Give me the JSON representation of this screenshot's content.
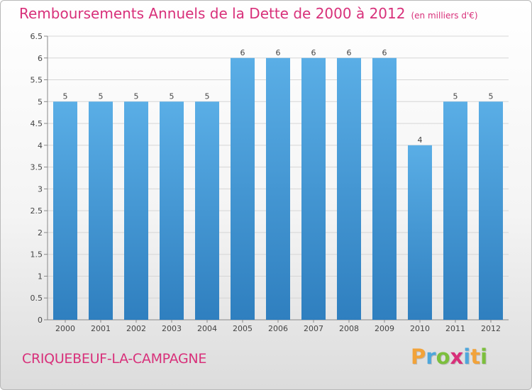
{
  "title": "Remboursements Annuels de la Dette de 2000 à 2012",
  "unit": "(en milliers d'€)",
  "commune": "CRIQUEBEUF-LA-CAMPAGNE",
  "brand": "Proxiti",
  "colors": {
    "bar": "#4fa3df",
    "title": "#d8307a"
  },
  "chart_data": {
    "type": "bar",
    "title": "Remboursements Annuels de la Dette de 2000 à 2012",
    "categories": [
      "2000",
      "2001",
      "2002",
      "2003",
      "2004",
      "2005",
      "2006",
      "2007",
      "2008",
      "2009",
      "2010",
      "2011",
      "2012"
    ],
    "values": [
      5,
      5,
      5,
      5,
      5,
      6,
      6,
      6,
      6,
      6,
      4,
      5,
      5
    ],
    "data_labels": [
      "5",
      "5",
      "5",
      "5",
      "5",
      "6",
      "6",
      "6",
      "6",
      "6",
      "4",
      "5",
      "5"
    ],
    "yticks": [
      "0",
      "0.5",
      "1",
      "1.5",
      "2",
      "2.5",
      "3",
      "3.5",
      "4",
      "4.5",
      "5",
      "5.5",
      "6",
      "6.5"
    ],
    "ylim": [
      0,
      6.5
    ],
    "grid": true
  }
}
